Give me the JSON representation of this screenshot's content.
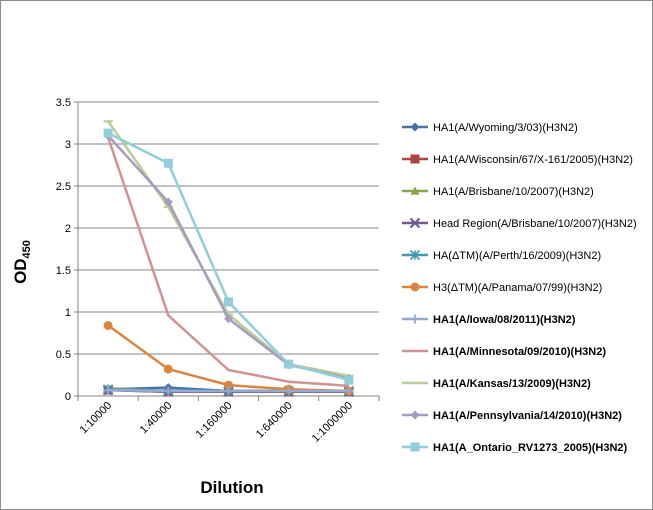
{
  "chart_data": {
    "type": "line",
    "title": "",
    "xlabel": "Dilution",
    "ylabel": "OD",
    "ylabel_subscript": "450",
    "categories": [
      "1:10000",
      "1:40000",
      "1:160000",
      "1:640000",
      "1:1000000"
    ],
    "ylim": [
      0,
      3.5
    ],
    "yticks": [
      "0",
      "0.5",
      "1",
      "1.5",
      "2",
      "2.5",
      "3",
      "3.5"
    ],
    "grid": true,
    "legend_position": "right",
    "series": [
      {
        "name": "HA1(A/Wyoming/3/03)(H3N2)",
        "color": "#4572a7",
        "marker": "diamond",
        "bold": false,
        "values": [
          0.08,
          0.1,
          0.06,
          0.06,
          0.06
        ]
      },
      {
        "name": "HA1(A/Wisconsin/67/X-161/2005)(H3N2)",
        "color": "#aa4643",
        "marker": "square",
        "bold": false,
        "values": [
          0.07,
          0.05,
          0.05,
          0.05,
          0.05
        ]
      },
      {
        "name": "HA1(A/Brisbane/10/2007)(H3N2)",
        "color": "#89a54e",
        "marker": "triangle",
        "bold": false,
        "values": [
          0.09,
          0.06,
          0.06,
          0.06,
          0.06
        ]
      },
      {
        "name": "Head Region(A/Brisbane/10/2007)(H3N2)",
        "color": "#71588f",
        "marker": "x",
        "bold": false,
        "values": [
          0.07,
          0.05,
          0.05,
          0.05,
          0.05
        ]
      },
      {
        "name": "HA(ΔTM)(A/Perth/16/2009)(H3N2)",
        "color": "#4198af",
        "marker": "star",
        "bold": false,
        "values": [
          0.08,
          0.06,
          0.06,
          0.06,
          0.06
        ]
      },
      {
        "name": "H3(ΔTM)(A/Panama/07/99)(H3N2)",
        "color": "#db843d",
        "marker": "circle",
        "bold": false,
        "values": [
          0.84,
          0.32,
          0.13,
          0.08,
          0.06
        ]
      },
      {
        "name": "HA1(A/Iowa/08/2011)(H3N2)",
        "color": "#93a9cf",
        "marker": "plus",
        "bold": true,
        "values": [
          0.07,
          0.06,
          0.06,
          0.06,
          0.06
        ]
      },
      {
        "name": "HA1(A/Minnesota/09/2010)(H3N2)",
        "color": "#d19392",
        "marker": "none",
        "bold": true,
        "values": [
          3.08,
          0.96,
          0.31,
          0.17,
          0.12
        ]
      },
      {
        "name": "HA1(A/Kansas/13/2009)(H3N2)",
        "color": "#b9cd96",
        "marker": "dash",
        "bold": true,
        "values": [
          3.27,
          2.25,
          0.97,
          0.38,
          0.24
        ]
      },
      {
        "name": "HA1(A/Pennsylvania/14/2010)(H3N2)",
        "color": "#a99bbd",
        "marker": "diamond",
        "bold": true,
        "values": [
          3.1,
          2.31,
          0.92,
          0.37,
          0.21
        ]
      },
      {
        "name": "HA1(A_Ontario_RV1273_2005)(H3N2)",
        "color": "#92cddc",
        "marker": "square",
        "bold": true,
        "values": [
          3.13,
          2.77,
          1.12,
          0.38,
          0.19
        ]
      }
    ]
  }
}
